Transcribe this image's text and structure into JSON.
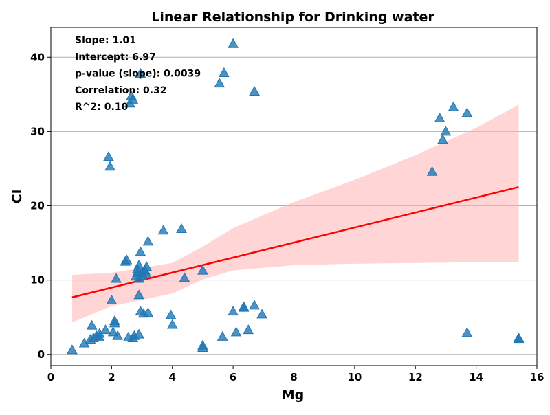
{
  "chart_data": {
    "type": "scatter",
    "title": "Linear Relationship for Drinking water",
    "xlabel": "Mg",
    "ylabel": "Cl",
    "xlim": [
      0,
      16
    ],
    "ylim": [
      -1.5,
      44
    ],
    "x_ticks": [
      0,
      2,
      4,
      6,
      8,
      10,
      12,
      14,
      16
    ],
    "y_ticks": [
      0,
      10,
      20,
      30,
      40
    ],
    "grid": "horizontal",
    "colors": {
      "points": "#1f77b4",
      "regression_line": "#ff0000",
      "confidence_band": "#ffb3b3"
    },
    "marker": "triangle",
    "stats": [
      "Slope: 1.01",
      "Intercept: 6.97",
      "p-value (slope): 0.0039",
      "Correlation: 0.32",
      "R^2: 0.10"
    ],
    "regression": {
      "slope": 1.01,
      "intercept": 6.97,
      "x_range": [
        0.7,
        15.4
      ],
      "ci_upper": [
        [
          0.7,
          10.7
        ],
        [
          2,
          11.0
        ],
        [
          4,
          12.3
        ],
        [
          5,
          14.5
        ],
        [
          6,
          17.0
        ],
        [
          8,
          20.5
        ],
        [
          10,
          23.5
        ],
        [
          12,
          26.8
        ],
        [
          14,
          30.5
        ],
        [
          15.4,
          33.6
        ]
      ],
      "ci_lower": [
        [
          0.7,
          4.3
        ],
        [
          2,
          6.5
        ],
        [
          4,
          8.2
        ],
        [
          5,
          10.1
        ],
        [
          6,
          11.3
        ],
        [
          8,
          12.0
        ],
        [
          10,
          12.2
        ],
        [
          12,
          12.3
        ],
        [
          14,
          12.4
        ],
        [
          15.4,
          12.4
        ]
      ]
    },
    "points": [
      {
        "x": 0.7,
        "y": 0.6
      },
      {
        "x": 1.1,
        "y": 1.5
      },
      {
        "x": 1.3,
        "y": 2.0
      },
      {
        "x": 1.35,
        "y": 3.9
      },
      {
        "x": 1.4,
        "y": 2.2
      },
      {
        "x": 1.5,
        "y": 2.5
      },
      {
        "x": 1.6,
        "y": 2.3
      },
      {
        "x": 1.6,
        "y": 2.8
      },
      {
        "x": 1.8,
        "y": 3.3
      },
      {
        "x": 1.9,
        "y": 26.6
      },
      {
        "x": 1.95,
        "y": 25.3
      },
      {
        "x": 2.0,
        "y": 7.3
      },
      {
        "x": 2.05,
        "y": 3.0
      },
      {
        "x": 2.1,
        "y": 4.2
      },
      {
        "x": 2.1,
        "y": 4.5
      },
      {
        "x": 2.15,
        "y": 10.2
      },
      {
        "x": 2.2,
        "y": 2.5
      },
      {
        "x": 2.45,
        "y": 12.5
      },
      {
        "x": 2.5,
        "y": 12.7
      },
      {
        "x": 2.55,
        "y": 2.3
      },
      {
        "x": 2.6,
        "y": 33.8
      },
      {
        "x": 2.65,
        "y": 34.8
      },
      {
        "x": 2.7,
        "y": 34.3
      },
      {
        "x": 2.7,
        "y": 2.2
      },
      {
        "x": 2.75,
        "y": 2.5
      },
      {
        "x": 2.8,
        "y": 10.5
      },
      {
        "x": 2.85,
        "y": 11.0
      },
      {
        "x": 2.85,
        "y": 11.5
      },
      {
        "x": 2.9,
        "y": 12.0
      },
      {
        "x": 2.9,
        "y": 8.0
      },
      {
        "x": 2.9,
        "y": 10.2
      },
      {
        "x": 2.9,
        "y": 2.7
      },
      {
        "x": 2.95,
        "y": 37.8
      },
      {
        "x": 2.95,
        "y": 13.8
      },
      {
        "x": 2.95,
        "y": 5.8
      },
      {
        "x": 3.0,
        "y": 10.6
      },
      {
        "x": 3.0,
        "y": 11.0
      },
      {
        "x": 3.05,
        "y": 5.5
      },
      {
        "x": 3.1,
        "y": 11.3
      },
      {
        "x": 3.15,
        "y": 11.8
      },
      {
        "x": 3.15,
        "y": 10.8
      },
      {
        "x": 3.2,
        "y": 15.2
      },
      {
        "x": 3.2,
        "y": 5.6
      },
      {
        "x": 3.7,
        "y": 16.7
      },
      {
        "x": 3.95,
        "y": 5.3
      },
      {
        "x": 4.0,
        "y": 4.0
      },
      {
        "x": 4.3,
        "y": 16.9
      },
      {
        "x": 4.4,
        "y": 10.3
      },
      {
        "x": 5.0,
        "y": 11.3
      },
      {
        "x": 5.0,
        "y": 1.2
      },
      {
        "x": 5.0,
        "y": 0.9
      },
      {
        "x": 5.55,
        "y": 36.5
      },
      {
        "x": 5.65,
        "y": 2.4
      },
      {
        "x": 5.7,
        "y": 37.9
      },
      {
        "x": 6.0,
        "y": 41.8
      },
      {
        "x": 6.0,
        "y": 5.8
      },
      {
        "x": 6.1,
        "y": 3.0
      },
      {
        "x": 6.35,
        "y": 6.3
      },
      {
        "x": 6.35,
        "y": 6.4
      },
      {
        "x": 6.5,
        "y": 3.3
      },
      {
        "x": 6.7,
        "y": 35.4
      },
      {
        "x": 6.7,
        "y": 6.6
      },
      {
        "x": 6.95,
        "y": 5.4
      },
      {
        "x": 12.55,
        "y": 24.6
      },
      {
        "x": 12.8,
        "y": 31.8
      },
      {
        "x": 12.9,
        "y": 28.9
      },
      {
        "x": 13.0,
        "y": 30.0
      },
      {
        "x": 13.25,
        "y": 33.3
      },
      {
        "x": 13.7,
        "y": 32.5
      },
      {
        "x": 13.7,
        "y": 2.9
      },
      {
        "x": 15.4,
        "y": 2.1
      },
      {
        "x": 15.4,
        "y": 2.2
      }
    ]
  }
}
